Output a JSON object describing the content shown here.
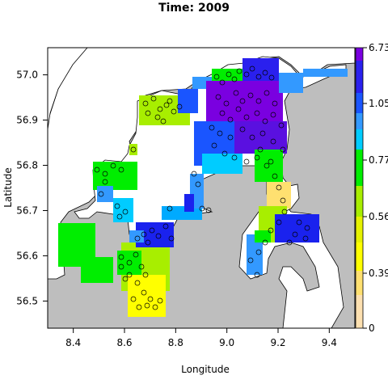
{
  "chart_data": {
    "type": "heatmap",
    "title": "Time: 2009",
    "xlabel": "Longitude",
    "ylabel": "Latitude",
    "xlim": [
      8.3,
      9.5
    ],
    "ylim": [
      56.44,
      57.06
    ],
    "x_ticks": [
      "8.4",
      "8.6",
      "8.8",
      "9.0",
      "9.2",
      "9.4"
    ],
    "x_tick_values": [
      8.4,
      8.6,
      8.8,
      9.0,
      9.2,
      9.4
    ],
    "y_ticks": [
      "56.5",
      "56.6",
      "56.7",
      "56.8",
      "56.9",
      "57.0"
    ],
    "y_tick_values": [
      56.5,
      56.6,
      56.7,
      56.8,
      56.9,
      57.0
    ],
    "colorbar": {
      "labels": [
        "0",
        "0.39",
        "0.56",
        "0.77",
        "1.05",
        "6.73"
      ],
      "colors": [
        "#fde0b0",
        "#ffff00",
        "#a8ee00",
        "#00ee00",
        "#00e8ff",
        "#3399ff",
        "#1a22ee",
        "#7a00e0"
      ]
    },
    "land_color": "#bebebe",
    "sea_color": "#ffffff",
    "points_style": "open black circles"
  }
}
